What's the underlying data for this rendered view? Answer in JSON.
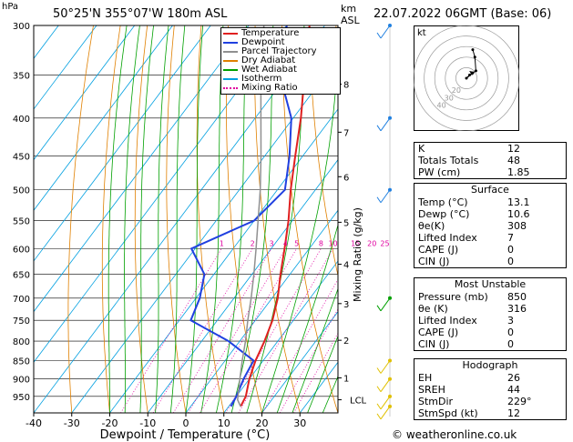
{
  "header": {
    "location": "50°25'N  355°07'W  180m  ASL",
    "datetime": "22.07.2022  06GMT  (Base: 06)",
    "hpa_label": "hPa",
    "km_label": "km",
    "asl_label": "ASL",
    "mixing_ratio_axis": "Mixing Ratio (g/kg)",
    "x_axis_label": "Dewpoint / Temperature (°C)",
    "footer": "© weatheronline.co.uk"
  },
  "legend": {
    "items": [
      {
        "label": "Temperature",
        "color": "#e02020",
        "style": "solid"
      },
      {
        "label": "Dewpoint",
        "color": "#2040e0",
        "style": "solid"
      },
      {
        "label": "Parcel Trajectory",
        "color": "#909090",
        "style": "solid"
      },
      {
        "label": "Dry Adiabat",
        "color": "#e08000",
        "style": "solid"
      },
      {
        "label": "Wet Adiabat",
        "color": "#00a000",
        "style": "solid"
      },
      {
        "label": "Isotherm",
        "color": "#00a0e0",
        "style": "solid"
      },
      {
        "label": "Mixing Ratio",
        "color": "#e000a0",
        "style": "dotted"
      }
    ]
  },
  "chart_data": {
    "type": "line",
    "x_axis": {
      "label": "Dewpoint / Temperature (°C)",
      "range": [
        -40,
        40
      ],
      "ticks": [
        -40,
        -30,
        -20,
        -10,
        0,
        10,
        20,
        30
      ],
      "skewed": true
    },
    "y_axis": {
      "label": "hPa",
      "scale": "log",
      "range": [
        300,
        1000
      ],
      "ticks": [
        300,
        350,
        400,
        450,
        500,
        550,
        600,
        650,
        700,
        750,
        800,
        850,
        900,
        950
      ]
    },
    "km_ticks": [
      {
        "label": "8",
        "p": 360
      },
      {
        "label": "7",
        "p": 418
      },
      {
        "label": "6",
        "p": 480
      },
      {
        "label": "5",
        "p": 553
      },
      {
        "label": "4",
        "p": 630
      },
      {
        "label": "3",
        "p": 712
      },
      {
        "label": "2",
        "p": 798
      },
      {
        "label": "1",
        "p": 897
      },
      {
        "label": "LCL",
        "p": 960
      }
    ],
    "mixing_ratio_labels": [
      "1",
      "2",
      "3",
      "4",
      "5",
      "8",
      "10",
      "15",
      "20",
      "25"
    ],
    "mixing_ratio_values": [
      1,
      2,
      3,
      4,
      5,
      8,
      10,
      15,
      20,
      25
    ],
    "series": [
      {
        "name": "Temperature",
        "color": "#e02020",
        "points": [
          [
            980,
            13.1
          ],
          [
            950,
            12.5
          ],
          [
            900,
            10.0
          ],
          [
            850,
            8.0
          ],
          [
            800,
            6.5
          ],
          [
            750,
            4.5
          ],
          [
            700,
            1.5
          ],
          [
            650,
            -2.5
          ],
          [
            600,
            -6.5
          ],
          [
            550,
            -11.0
          ],
          [
            500,
            -16.5
          ],
          [
            450,
            -22.0
          ],
          [
            400,
            -28.0
          ],
          [
            350,
            -35.5
          ],
          [
            300,
            -44.0
          ]
        ]
      },
      {
        "name": "Dewpoint",
        "color": "#2040e0",
        "points": [
          [
            980,
            10.6
          ],
          [
            950,
            10.0
          ],
          [
            900,
            8.5
          ],
          [
            850,
            7.5
          ],
          [
            800,
            -3.0
          ],
          [
            750,
            -17.0
          ],
          [
            700,
            -19.0
          ],
          [
            650,
            -22.5
          ],
          [
            600,
            -31.0
          ],
          [
            550,
            -20.0
          ],
          [
            500,
            -18.0
          ],
          [
            450,
            -23.5
          ],
          [
            400,
            -30.5
          ],
          [
            350,
            -42.0
          ],
          [
            300,
            -50.0
          ]
        ]
      },
      {
        "name": "Parcel Trajectory",
        "color": "#909090",
        "points": [
          [
            980,
            13.1
          ],
          [
            960,
            11.0
          ],
          [
            900,
            7.5
          ],
          [
            850,
            4.5
          ],
          [
            800,
            1.5
          ],
          [
            750,
            -2.0
          ],
          [
            700,
            -5.5
          ],
          [
            650,
            -9.5
          ],
          [
            600,
            -14.0
          ],
          [
            550,
            -19.0
          ],
          [
            500,
            -24.5
          ],
          [
            450,
            -31.0
          ],
          [
            400,
            -38.5
          ],
          [
            350,
            -47.0
          ],
          [
            300,
            -56.0
          ]
        ]
      }
    ]
  },
  "hodograph": {
    "unit_label": "kt",
    "ring_labels": [
      "20",
      "30",
      "40"
    ],
    "trace_kt": [
      [
        0,
        0
      ],
      [
        3,
        3
      ],
      [
        6,
        5
      ],
      [
        9,
        7
      ],
      [
        8,
        20
      ],
      [
        6,
        27
      ]
    ],
    "storm_motion_kt": [
      7,
      6
    ]
  },
  "indices": {
    "basic": [
      {
        "name": "K",
        "value": "12"
      },
      {
        "name": "Totals Totals",
        "value": "48"
      },
      {
        "name": "PW (cm)",
        "value": "1.85"
      }
    ],
    "surface_title": "Surface",
    "surface": [
      {
        "name": "Temp (°C)",
        "value": "13.1"
      },
      {
        "name": "Dewp (°C)",
        "value": "10.6"
      },
      {
        "name": "θe(K)",
        "value": "308"
      },
      {
        "name": "Lifted Index",
        "value": "7"
      },
      {
        "name": "CAPE (J)",
        "value": "0"
      },
      {
        "name": "CIN (J)",
        "value": "0"
      }
    ],
    "unstable_title": "Most Unstable",
    "unstable": [
      {
        "name": "Pressure (mb)",
        "value": "850"
      },
      {
        "name": "θe (K)",
        "value": "316"
      },
      {
        "name": "Lifted Index",
        "value": "3"
      },
      {
        "name": "CAPE (J)",
        "value": "0"
      },
      {
        "name": "CIN (J)",
        "value": "0"
      }
    ],
    "hodograph_title": "Hodograph",
    "hodo": [
      {
        "name": "EH",
        "value": "26"
      },
      {
        "name": "SREH",
        "value": "44"
      },
      {
        "name": "StmDir",
        "value": "229°"
      },
      {
        "name": "StmSpd (kt)",
        "value": "12"
      }
    ]
  },
  "colors": {
    "temperature": "#e02020",
    "dewpoint": "#2040e0",
    "parcel": "#909090",
    "dry_adiabat": "#e08000",
    "wet_adiabat": "#00a000",
    "isotherm": "#00a0e0",
    "mixing_ratio": "#e000a0",
    "wind_barb": "#2080e0"
  }
}
